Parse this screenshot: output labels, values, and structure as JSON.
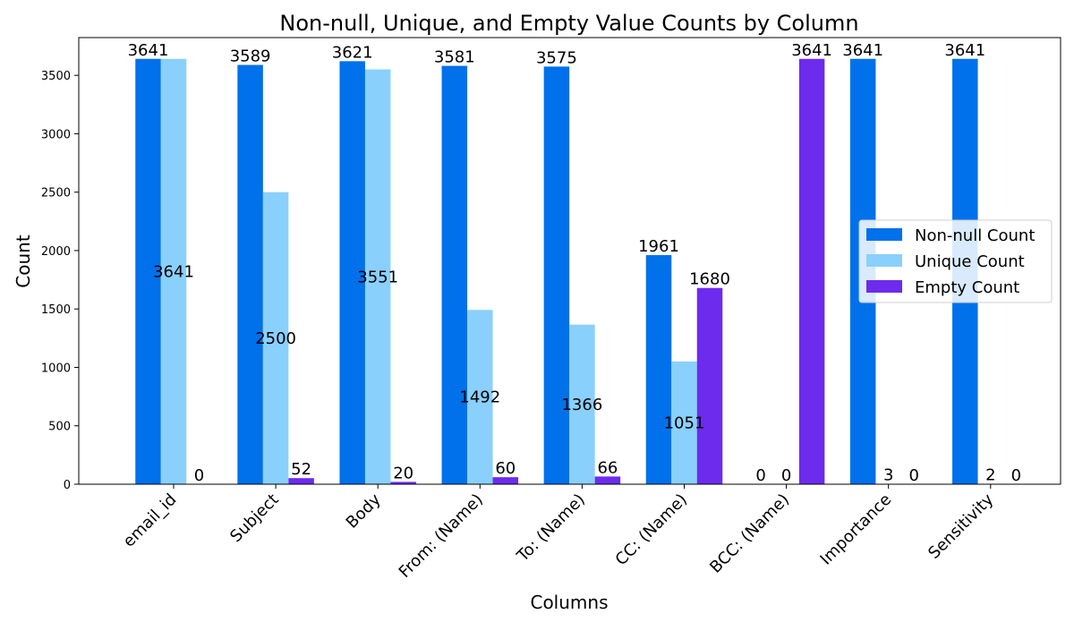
{
  "chart_data": {
    "type": "bar",
    "title": "Non-null, Unique, and Empty Value Counts by Column",
    "xlabel": "Columns",
    "ylabel": "Count",
    "categories": [
      "email_id",
      "Subject",
      "Body",
      "From: (Name)",
      "To: (Name)",
      "CC: (Name)",
      "BCC: (Name)",
      "Importance",
      "Sensitivity"
    ],
    "series": [
      {
        "name": "Non-null Count",
        "color": "#0070EB",
        "values": [
          3641,
          3589,
          3621,
          3581,
          3575,
          1961,
          0,
          3641,
          3641
        ]
      },
      {
        "name": "Unique Count",
        "color": "#8AD0FC",
        "values": [
          3641,
          2500,
          3551,
          1492,
          1366,
          1051,
          0,
          3,
          2
        ]
      },
      {
        "name": "Empty Count",
        "color": "#6D2BEE",
        "values": [
          0,
          52,
          20,
          60,
          66,
          1680,
          3641,
          0,
          0
        ]
      }
    ],
    "yticks": [
      0,
      500,
      1000,
      1500,
      2000,
      2500,
      3000,
      3500
    ],
    "ylim": [
      0,
      3823
    ],
    "grid": false,
    "legend_position": "center-right"
  }
}
